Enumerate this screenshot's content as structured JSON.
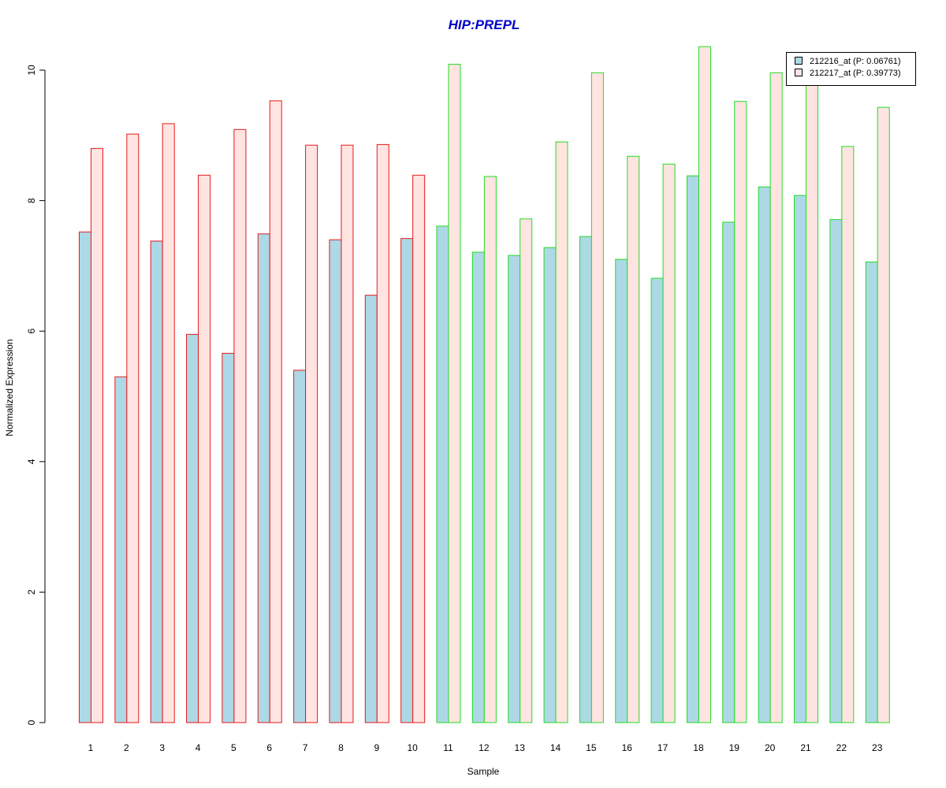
{
  "chart_data": {
    "type": "bar",
    "title": "HIP:PREPL",
    "xlabel": "Sample",
    "ylabel": "Normalized Expression",
    "categories": [
      "1",
      "2",
      "3",
      "4",
      "5",
      "6",
      "7",
      "8",
      "9",
      "10",
      "11",
      "12",
      "13",
      "14",
      "15",
      "16",
      "17",
      "18",
      "19",
      "20",
      "21",
      "22",
      "23"
    ],
    "series": [
      {
        "name": "212216_at (P: 0.06761)",
        "fill": "#add8e6",
        "values": [
          7.52,
          5.3,
          7.38,
          5.95,
          5.66,
          7.49,
          5.4,
          7.4,
          6.55,
          7.42,
          7.61,
          7.21,
          7.16,
          7.28,
          7.45,
          7.1,
          6.81,
          8.38,
          7.67,
          8.21,
          8.08,
          7.71,
          7.06
        ]
      },
      {
        "name": "212217_at (P: 0.39773)",
        "fill": "#ffe4e1",
        "values": [
          8.8,
          9.02,
          9.18,
          8.39,
          9.09,
          9.53,
          8.85,
          8.85,
          8.86,
          8.39,
          10.09,
          8.37,
          7.72,
          8.9,
          9.96,
          8.68,
          8.56,
          10.36,
          9.52,
          9.96,
          9.8,
          8.83,
          9.43
        ]
      }
    ],
    "group_border_colors": [
      "#e41a1c",
      "#e41a1c",
      "#e41a1c",
      "#e41a1c",
      "#e41a1c",
      "#e41a1c",
      "#e41a1c",
      "#e41a1c",
      "#e41a1c",
      "#e41a1c",
      "#22dd22",
      "#22dd22",
      "#22dd22",
      "#22dd22",
      "#22dd22",
      "#22dd22",
      "#22dd22",
      "#22dd22",
      "#22dd22",
      "#22dd22",
      "#22dd22",
      "#22dd22",
      "#22dd22"
    ],
    "yticks": [
      "0",
      "2",
      "4",
      "6",
      "8",
      "10"
    ],
    "ylim": [
      0,
      10.4
    ],
    "title_color": "#0000cc",
    "grid": false,
    "legend_position": "top-right"
  }
}
